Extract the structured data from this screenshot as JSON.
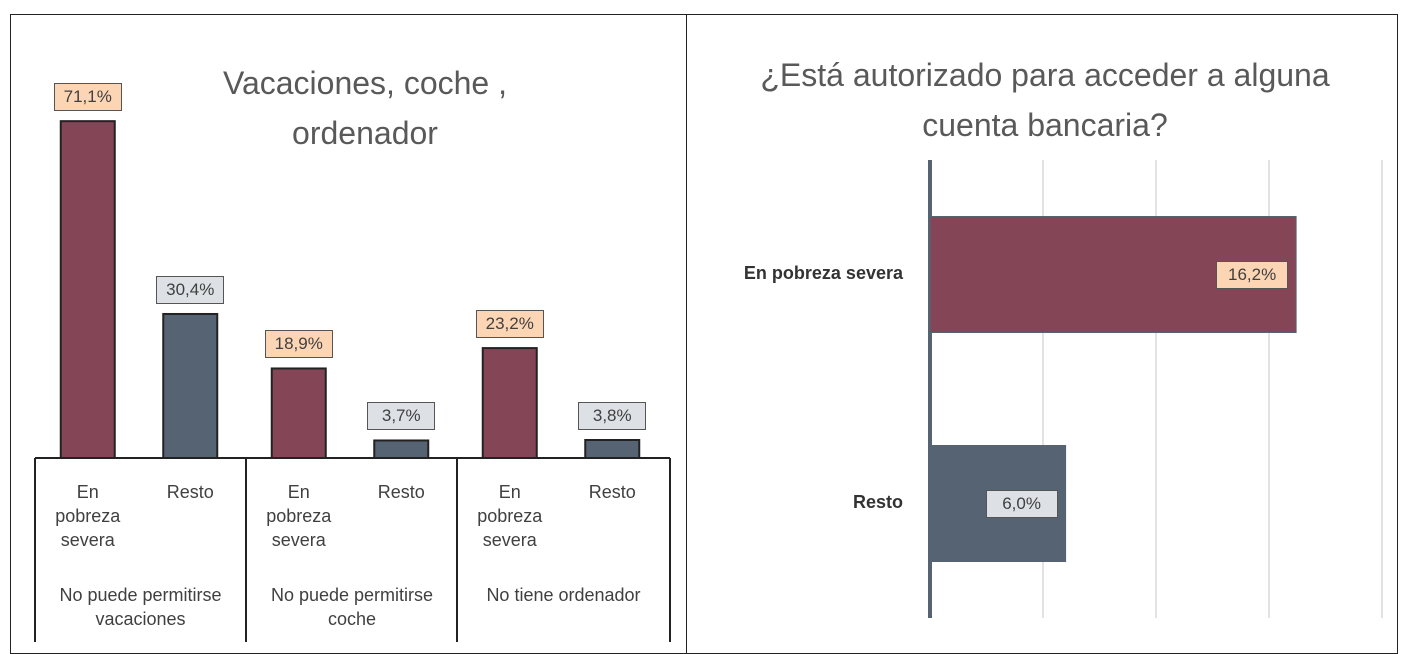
{
  "chart_data": [
    {
      "type": "bar",
      "title": "Vacaciones, coche , ordenador",
      "categories": [
        "En pobreza severa",
        "Resto",
        "En pobreza severa",
        "Resto",
        "En pobreza severa",
        "Resto"
      ],
      "groups": [
        "No puede permitirse vacaciones",
        "No puede permitirse coche",
        "No tiene ordenador"
      ],
      "values": [
        71.1,
        30.4,
        18.9,
        3.7,
        23.2,
        3.8
      ],
      "value_labels": [
        "71,1%",
        "30,4%",
        "18,9%",
        "3,7%",
        "23,2%",
        "3,8%"
      ],
      "colors": [
        "#844656",
        "#566373",
        "#844656",
        "#566373",
        "#844656",
        "#566373"
      ],
      "label_box_colors": [
        "#fcd5b5",
        "#dde1e6",
        "#fcd5b5",
        "#dde1e6",
        "#fcd5b5",
        "#dde1e6"
      ],
      "ylim": [
        0,
        80
      ]
    },
    {
      "type": "hbar",
      "title": "¿Está autorizado para acceder a alguna cuenta bancaria?",
      "categories": [
        "En pobreza severa",
        "Resto"
      ],
      "values": [
        16.2,
        6.0
      ],
      "value_labels": [
        "16,2%",
        "6,0%"
      ],
      "colors": [
        "#844656",
        "#566373"
      ],
      "label_box_colors": [
        "#fcd5b5",
        "#dde1e6"
      ],
      "xlim": [
        0,
        20
      ],
      "xticks": [
        0,
        5,
        10,
        15,
        20
      ],
      "grid": true
    }
  ]
}
